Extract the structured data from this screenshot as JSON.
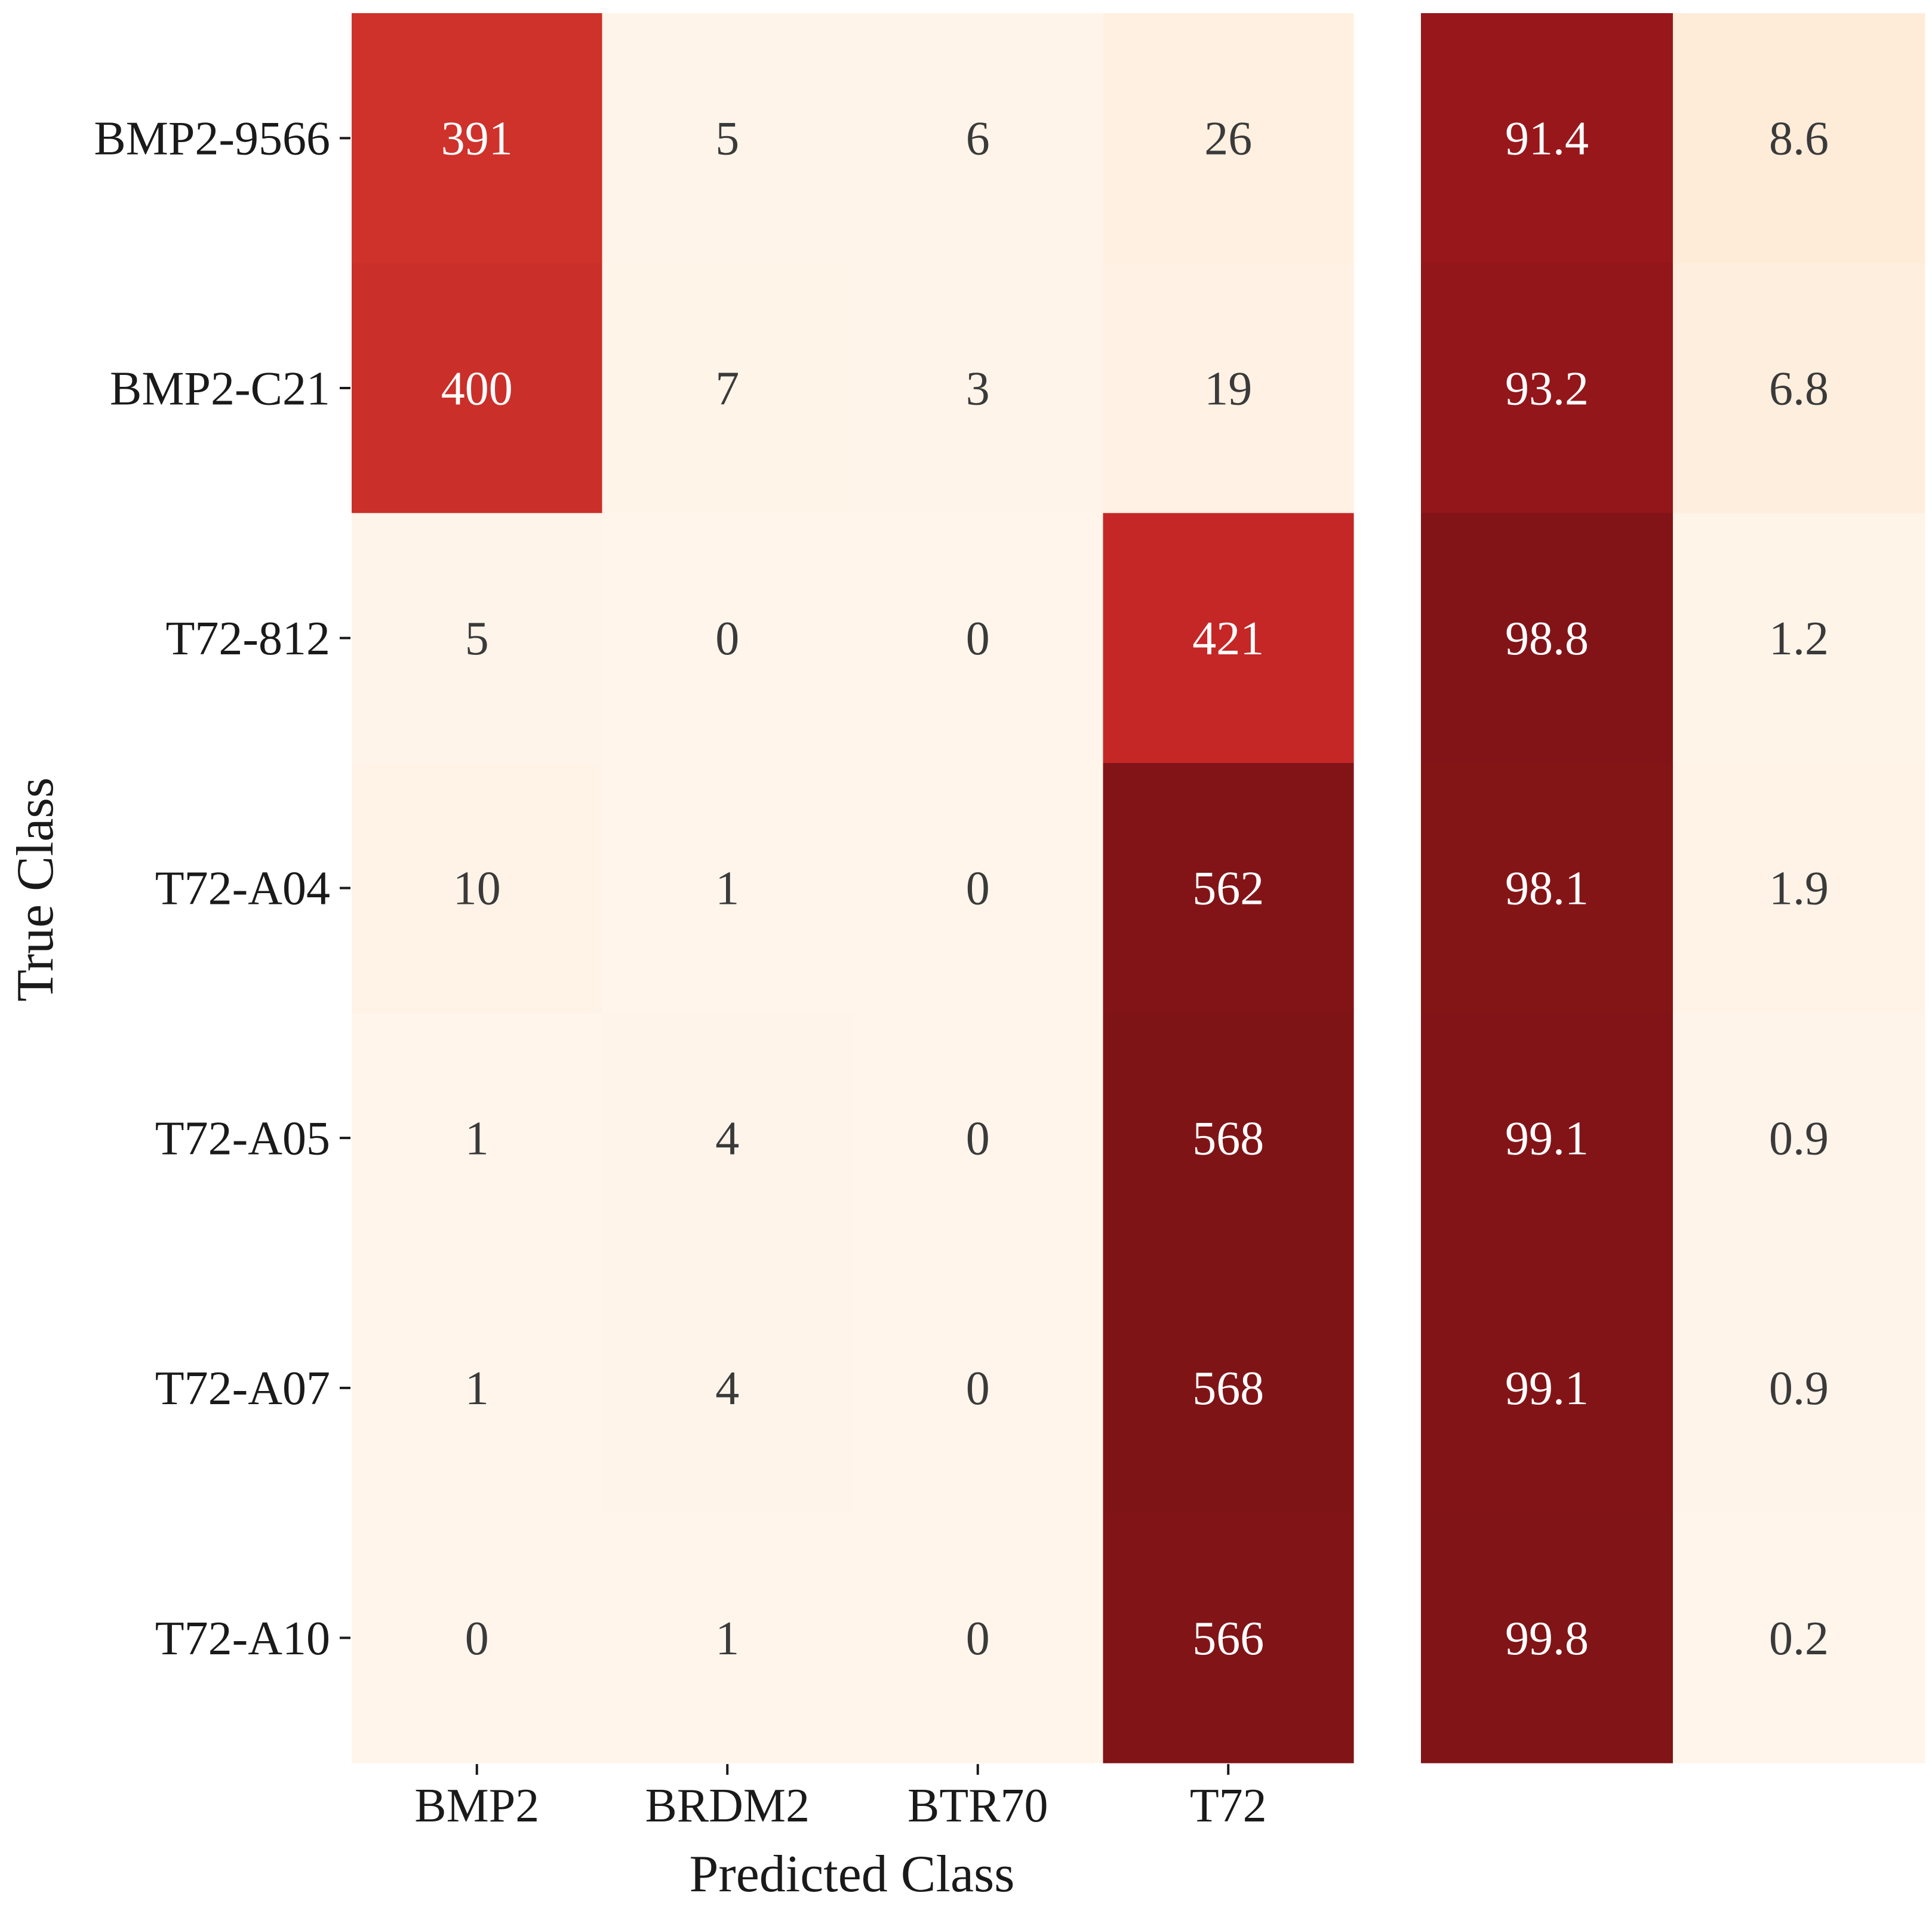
{
  "chart_data": [
    {
      "type": "heatmap",
      "name": "confusion-matrix",
      "xlabel": "Predicted Class",
      "ylabel": "True Class",
      "x_categories": [
        "BMP2",
        "BRDM2",
        "BTR70",
        "T72"
      ],
      "y_categories": [
        "BMP2-9566",
        "BMP2-C21",
        "T72-812",
        "T72-A04",
        "T72-A05",
        "T72-A07",
        "T72-A10"
      ],
      "values": [
        [
          391,
          5,
          6,
          26
        ],
        [
          400,
          7,
          3,
          19
        ],
        [
          5,
          0,
          0,
          421
        ],
        [
          10,
          1,
          0,
          562
        ],
        [
          1,
          4,
          0,
          568
        ],
        [
          1,
          4,
          0,
          568
        ],
        [
          0,
          1,
          0,
          566
        ]
      ],
      "value_range": [
        0,
        568
      ],
      "colormap": [
        "#fff5eb",
        "#fde0c1",
        "#fb8a5c",
        "#e04530",
        "#b81b22",
        "#7f1416"
      ]
    },
    {
      "type": "heatmap",
      "name": "percentage-matrix",
      "x_categories": [
        "",
        ""
      ],
      "y_categories": [
        "BMP2-9566",
        "BMP2-C21",
        "T72-812",
        "T72-A04",
        "T72-A05",
        "T72-A07",
        "T72-A10"
      ],
      "values": [
        [
          91.4,
          8.6
        ],
        [
          93.2,
          6.8
        ],
        [
          98.8,
          1.2
        ],
        [
          98.1,
          1.9
        ],
        [
          99.1,
          0.9
        ],
        [
          99.1,
          0.9
        ],
        [
          99.8,
          0.2
        ]
      ],
      "value_range": [
        0,
        100
      ],
      "colormap": [
        "#fff5eb",
        "#fde0c1",
        "#fb8a5c",
        "#e04530",
        "#b81b22",
        "#7f1416"
      ]
    }
  ]
}
